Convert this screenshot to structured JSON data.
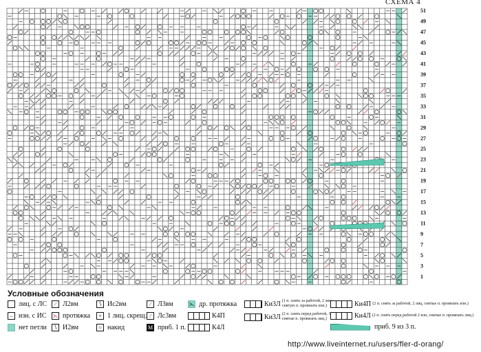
{
  "title": "СХЕМА 4",
  "row_numbers": [
    "51",
    "49",
    "47",
    "45",
    "43",
    "41",
    "39",
    "37",
    "35",
    "33",
    "31",
    "29",
    "27",
    "25",
    "23",
    "21",
    "19",
    "17",
    "15",
    "13",
    "11",
    "9",
    "7",
    "5",
    "3",
    "1"
  ],
  "legend": {
    "heading": "Условные обозначения",
    "items": [
      {
        "icon": "empty-square",
        "label": "лиц. с ЛС"
      },
      {
        "icon": "dash-square",
        "label": "изн. с ИС"
      },
      {
        "icon": "teal-square",
        "label": "нет петли"
      },
      {
        "icon": "left-slash-square",
        "label": "Л2вм"
      },
      {
        "icon": "red-pull-square",
        "label": "протяжка"
      },
      {
        "icon": "right-slash-square",
        "label": "И2вм"
      },
      {
        "icon": "right-slash-square",
        "label": "Ис2вм"
      },
      {
        "icon": "cross-square",
        "label": "1 лиц. скрещ."
      },
      {
        "icon": "circle-square",
        "label": "накид"
      },
      {
        "icon": "left-slash-square",
        "label": "Л3вм"
      },
      {
        "icon": "left-slash-square",
        "label": "Лс3вм"
      },
      {
        "icon": "m-dark-square",
        "label": "приб. 1 п."
      },
      {
        "icon": "teal-pull-square",
        "label": "др. протяжка"
      },
      {
        "icon": "cable-icon",
        "label": "К4П"
      },
      {
        "icon": "cable-icon",
        "label": "К4Л"
      },
      {
        "icon": "cable-icon",
        "label": "Ки3Л",
        "note": "(1 п. снять за работой, 2 лиц, снятую п. провязать изн.)"
      },
      {
        "icon": "cable-icon",
        "label": "Ки3Л",
        "note": "(2 п. снять перед работой, 1 изн, снятые п. провязать лиц.)"
      },
      {
        "icon": "cable-icon",
        "label": "Ки4П",
        "note": "(2 п. снять за работой, 2 лиц, снятые п. провязать изн.)"
      },
      {
        "icon": "cable-icon",
        "label": "Ки4Л",
        "note": "(2 п. снять перед работой 2 изн, снятые п. провязать лиц.)"
      },
      {
        "icon": "teal-wedge-icon",
        "label": "приб. 9 из 3 п."
      }
    ]
  },
  "footer": {
    "url": "http://www.liveinternet.ru/users/fler-d-orang/"
  },
  "colors": {
    "grid": "#222222",
    "teal": "#8ed6c6",
    "red": "#cc2b2b",
    "wedge": "#5cc8b0"
  }
}
